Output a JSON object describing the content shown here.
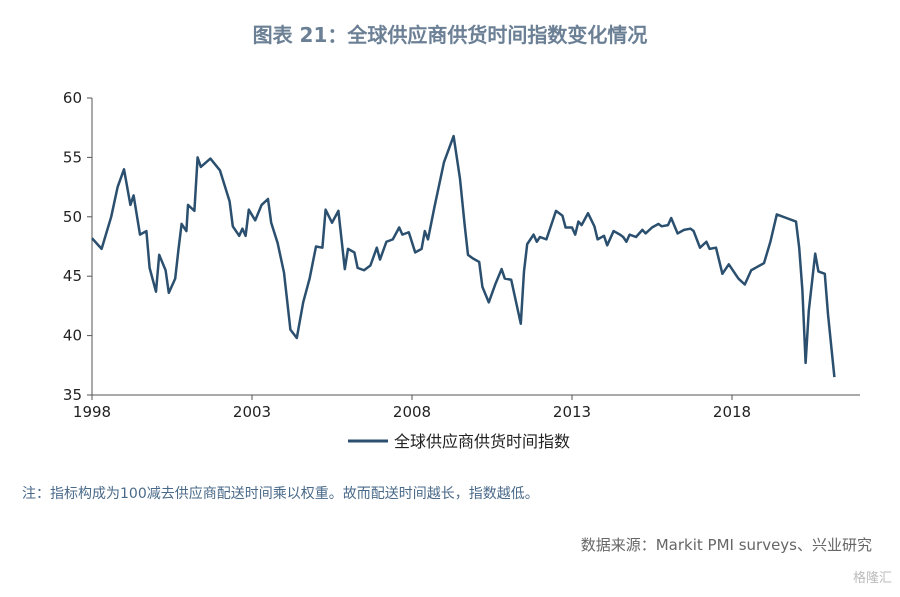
{
  "chart_data": {
    "type": "line",
    "title": "图表 21：全球供应商供货时间指数变化情况",
    "note": "注：指标构成为100减去供应商配送时间乘以权重。故而配送时间越长，指数越低。",
    "source": "数据来源：Markit PMI surveys、兴业研究",
    "watermark": "格隆汇",
    "xlim": [
      1998,
      2022
    ],
    "xticks": [
      1998,
      2003,
      2008,
      2013,
      2018
    ],
    "ylim": [
      35,
      60
    ],
    "yticks": [
      35,
      40,
      45,
      50,
      55,
      60
    ],
    "grid": false,
    "legend": "bottom",
    "series": [
      {
        "name": "全球供应商供货时间指数",
        "color": "#2b4f6e",
        "x": [
          1998.0,
          1998.3,
          1998.6,
          1998.8,
          1999.0,
          1999.2,
          1999.3,
          1999.5,
          1999.7,
          1999.8,
          2000.0,
          2000.1,
          2000.3,
          2000.4,
          2000.6,
          2000.7,
          2000.8,
          2000.95,
          2001.0,
          2001.2,
          2001.3,
          2001.4,
          2001.7,
          2002.0,
          2002.3,
          2002.4,
          2002.6,
          2002.7,
          2002.8,
          2002.9,
          2003.1,
          2003.3,
          2003.5,
          2003.6,
          2003.8,
          2004.0,
          2004.2,
          2004.4,
          2004.6,
          2004.8,
          2005.0,
          2005.2,
          2005.3,
          2005.5,
          2005.7,
          2005.9,
          2006.0,
          2006.2,
          2006.3,
          2006.5,
          2006.7,
          2006.9,
          2007.0,
          2007.2,
          2007.4,
          2007.6,
          2007.7,
          2007.9,
          2008.1,
          2008.3,
          2008.4,
          2008.5,
          2008.7,
          2009.0,
          2009.3,
          2009.5,
          2009.65,
          2009.75,
          2009.9,
          2010.1,
          2010.2,
          2010.4,
          2010.6,
          2010.8,
          2010.9,
          2011.1,
          2011.4,
          2011.5,
          2011.6,
          2011.8,
          2011.9,
          2012.0,
          2012.2,
          2012.3,
          2012.5,
          2012.7,
          2012.8,
          2013.0,
          2013.1,
          2013.2,
          2013.3,
          2013.5,
          2013.7,
          2013.8,
          2014.0,
          2014.1,
          2014.3,
          2014.5,
          2014.6,
          2014.7,
          2014.8,
          2015.0,
          2015.2,
          2015.3,
          2015.5,
          2015.7,
          2015.8,
          2016.0,
          2016.1,
          2016.3,
          2016.5,
          2016.7,
          2016.8,
          2017.0,
          2017.2,
          2017.3,
          2017.5,
          2017.7,
          2017.9,
          2018.1,
          2018.2,
          2018.4,
          2018.6,
          2018.8,
          2019.0,
          2019.2,
          2019.4,
          2019.7,
          2020.0,
          2020.1,
          2020.2,
          2020.3,
          2020.4,
          2020.6,
          2020.7,
          2020.9,
          2021.0,
          2021.2
        ],
        "values": [
          48.2,
          47.3,
          50,
          52.5,
          54,
          51,
          51.8,
          48.5,
          48.8,
          45.7,
          43.7,
          46.8,
          45.5,
          43.6,
          44.8,
          47.2,
          49.4,
          48.8,
          51,
          50.5,
          55,
          54.2,
          54.9,
          53.9,
          51.3,
          49.2,
          48.4,
          49,
          48.4,
          50.6,
          49.7,
          51,
          51.5,
          49.5,
          47.8,
          45.3,
          40.5,
          39.8,
          42.8,
          44.8,
          47.5,
          47.4,
          50.6,
          49.5,
          50.5,
          45.6,
          47.3,
          47,
          45.7,
          45.5,
          45.9,
          47.4,
          46.4,
          47.9,
          48.1,
          49.1,
          48.5,
          48.7,
          47,
          47.3,
          48.8,
          48.1,
          50.8,
          54.6,
          56.8,
          53.2,
          49.2,
          46.8,
          46.5,
          46.2,
          44.1,
          42.8,
          44.3,
          45.6,
          44.8,
          44.7,
          41,
          45.4,
          47.7,
          48.5,
          47.9,
          48.3,
          48.1,
          48.9,
          50.5,
          50.1,
          49.1,
          49.1,
          48.5,
          49.6,
          49.3,
          50.3,
          49.2,
          48.1,
          48.4,
          47.6,
          48.8,
          48.5,
          48.3,
          47.9,
          48.5,
          48.3,
          48.9,
          48.6,
          49.1,
          49.4,
          49.2,
          49.3,
          49.9,
          48.6,
          48.9,
          49,
          48.8,
          47.4,
          47.9,
          47.3,
          47.4,
          45.2,
          46,
          45.2,
          44.8,
          44.3,
          45.5,
          45.8,
          46.1,
          47.9,
          50.2,
          49.9,
          49.6,
          47.4,
          43.8,
          37.7,
          42.1,
          46.9,
          45.4,
          45.2,
          41.8,
          36.5
        ]
      }
    ]
  }
}
